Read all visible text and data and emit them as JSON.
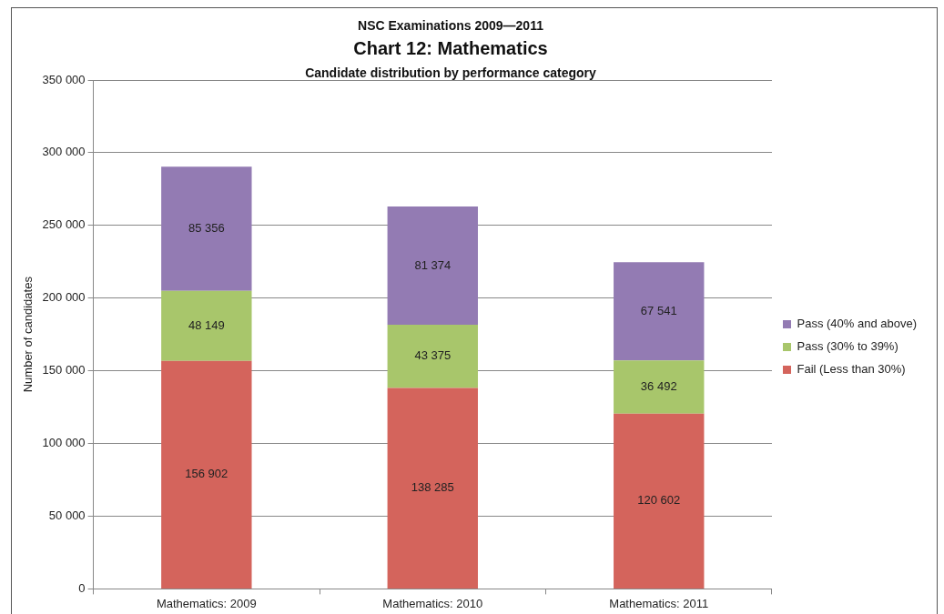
{
  "chart_data": {
    "type": "bar",
    "title": "Chart 12: Mathematics",
    "subtitle": "Candidate distribution by performance  category",
    "annotations": [
      "NSC Examinations 2009—2011"
    ],
    "ylabel": "Number of candidates",
    "categories": [
      "Mathematics: 2009",
      "Mathematics: 2010",
      "Mathematics: 2011"
    ],
    "stacked": true,
    "grid": "y",
    "legend": "right",
    "series": [
      {
        "name": "Fail (Less than 30%)",
        "color": "#d4645c",
        "values": [
          156902,
          138285,
          120602
        ],
        "value_labels": [
          "156 902",
          "138 285",
          "120 602"
        ]
      },
      {
        "name": "Pass (30% to 39%)",
        "color": "#a8c66b",
        "values": [
          48149,
          43375,
          36492
        ],
        "value_labels": [
          "48 149",
          "43 375",
          "36 492"
        ]
      },
      {
        "name": "Pass (40% and above)",
        "color": "#937bb3",
        "values": [
          85356,
          81374,
          67541
        ],
        "value_labels": [
          "85 356",
          "81 374",
          "67 541"
        ]
      }
    ],
    "ylim": [
      0,
      350000
    ],
    "yticks": [
      {
        "value": 0,
        "label": "0"
      },
      {
        "value": 50000,
        "label": "50 000"
      },
      {
        "value": 100000,
        "label": "100 000"
      },
      {
        "value": 150000,
        "label": "150 000"
      },
      {
        "value": 200000,
        "label": "200 000"
      },
      {
        "value": 250000,
        "label": "250 000"
      },
      {
        "value": 300000,
        "label": "300 000"
      },
      {
        "value": 350000,
        "label": "350 000"
      }
    ]
  }
}
